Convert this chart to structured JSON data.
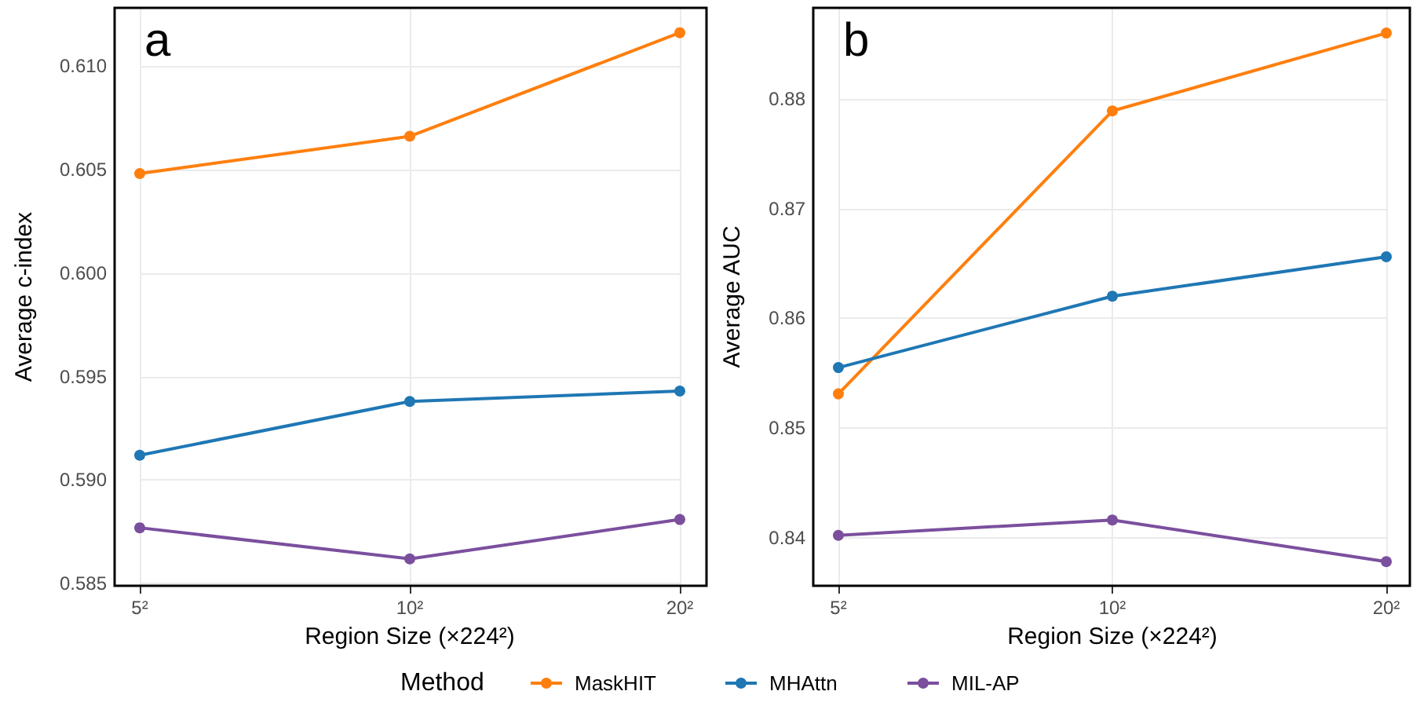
{
  "chart_data": [
    {
      "type": "line",
      "title": "a",
      "xlabel": "Region Size (×224²)",
      "ylabel": "Average c-index",
      "categories": [
        "5²",
        "10²",
        "20²"
      ],
      "series": [
        {
          "name": "MaskHIT",
          "color": "#ff7f0e",
          "values": [
            0.6048,
            0.6066,
            0.6116
          ]
        },
        {
          "name": "MHAttn",
          "color": "#1f77b4",
          "values": [
            0.5912,
            0.5938,
            0.5943
          ]
        },
        {
          "name": "MIL-AP",
          "color": "#7b4f9e",
          "values": [
            0.5877,
            0.5862,
            0.5881
          ]
        }
      ],
      "ylim": [
        0.5849,
        0.6128
      ],
      "yticks": [
        0.585,
        {
          "value": 0.59,
          "label": "0.590"
        },
        {
          "value": 0.595,
          "label": "0.595"
        },
        {
          "value": 0.6,
          "label": "0.600"
        },
        0.605,
        {
          "value": 0.61,
          "label": "0.610"
        }
      ],
      "grid": true,
      "marker": "circle",
      "line_style": "solid",
      "legend": "bottom",
      "legend_title": "Method"
    },
    {
      "type": "line",
      "title": "b",
      "xlabel": "Region Size (×224²)",
      "ylabel": "Average AUC",
      "categories": [
        "5²",
        "10²",
        "20²"
      ],
      "series": [
        {
          "name": "MaskHIT",
          "color": "#ff7f0e",
          "values": [
            0.8531,
            0.8789,
            0.886
          ]
        },
        {
          "name": "MHAttn",
          "color": "#1f77b4",
          "values": [
            0.8555,
            0.862,
            0.8656
          ]
        },
        {
          "name": "MIL-AP",
          "color": "#7b4f9e",
          "values": [
            0.8402,
            0.8416,
            0.8378
          ]
        }
      ],
      "ylim": [
        0.8356,
        0.8883
      ],
      "yticks": [
        0.84,
        0.85,
        0.86,
        0.87,
        0.88
      ],
      "grid": true,
      "marker": "circle",
      "line_style": "solid",
      "legend": "bottom"
    }
  ]
}
